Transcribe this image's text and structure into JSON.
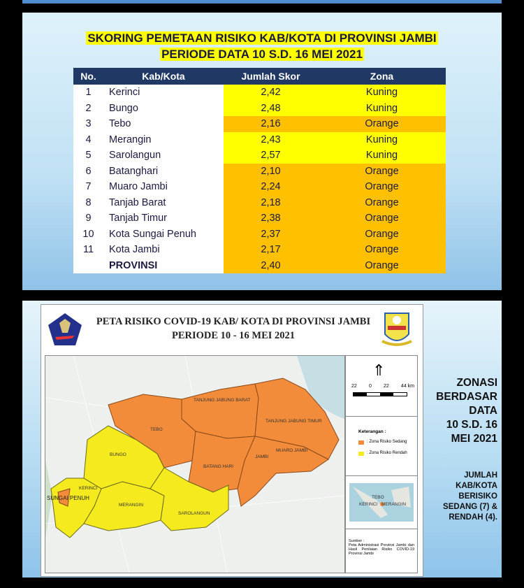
{
  "table_panel": {
    "title_line1": "SKORING PEMETAAN RISIKO KAB/KOTA DI PROVINSI JAMBI",
    "title_line2": "PERIODE  DATA 10 S.D. 16 MEI 2021",
    "headers": [
      "No.",
      "Kab/Kota",
      "Jumlah Skor",
      "Zona"
    ],
    "rows": [
      {
        "no": "1",
        "kab": "Kerinci",
        "skor": "2,42",
        "zona": "Kuning"
      },
      {
        "no": "2",
        "kab": "Bungo",
        "skor": "2,48",
        "zona": "Kuning"
      },
      {
        "no": "3",
        "kab": "Tebo",
        "skor": "2,16",
        "zona": "Orange"
      },
      {
        "no": "4",
        "kab": "Merangin",
        "skor": "2,43",
        "zona": "Kuning"
      },
      {
        "no": "5",
        "kab": "Sarolangun",
        "skor": "2,57",
        "zona": "Kuning"
      },
      {
        "no": "6",
        "kab": "Batanghari",
        "skor": "2,10",
        "zona": "Orange"
      },
      {
        "no": "7",
        "kab": "Muaro Jambi",
        "skor": "2,24",
        "zona": "Orange"
      },
      {
        "no": "8",
        "kab": "Tanjab Barat",
        "skor": "2,18",
        "zona": "Orange"
      },
      {
        "no": "9",
        "kab": "Tanjab Timur",
        "skor": "2,38",
        "zona": "Orange"
      },
      {
        "no": "10",
        "kab": "Kota Sungai Penuh",
        "skor": "2,37",
        "zona": "Orange"
      },
      {
        "no": "11",
        "kab": "Kota Jambi",
        "skor": "2,17",
        "zona": "Orange"
      },
      {
        "no": "",
        "kab": "PROVINSI",
        "skor": "2,40",
        "zona": "Orange"
      }
    ],
    "colors": {
      "Kuning": "#ffff00",
      "Orange": "#ffc000",
      "header": "#1f3864"
    }
  },
  "map_panel": {
    "title_line1": "PETA RISIKO COVID-19 KAB/ KOTA DI PROVINSI JAMBI",
    "title_line2": "PERIODE 10 - 16 MEI 2021",
    "logo_left_text": "SATUAN TUGAS PENANGANAN COVID-19",
    "region_labels": {
      "tanjabbar": "TANJUNG JABUNG BARAT",
      "tanjabtim": "TANJUNG JABUNG TIMUR",
      "tebo": "TEBO",
      "bungo": "BUNGO",
      "batanghari": "BATANG HARI",
      "jambi": "JAMBI",
      "muarojambi": "MUARO JAMBI",
      "kerinci": "KERINCI",
      "sungaipenuh": "SUNGAI PENUH",
      "merangin": "MERANGIN",
      "sarolangun": "SAROLANGUN"
    },
    "scale": [
      "22",
      "0",
      "22",
      "44 km"
    ],
    "legend_title": "Keterangan :",
    "legend": [
      {
        "label": ": Zona Risiko Sedang",
        "color": "#f28c3a"
      },
      {
        "label": ": Zona Risiko Rendah",
        "color": "#f5ea1e"
      }
    ],
    "inset_labels": [
      "TEBO",
      "KERINCI",
      "MERANGIN"
    ],
    "source": "Sumber :\nPeta Administrasi Provinsi Jambi dan Hasil Penilaian Risiko COVID-19 Provinsi Jambi"
  },
  "side_text": {
    "heading": [
      "ZONASI",
      "BERDASAR",
      "DATA",
      "10 S.D. 16",
      "MEI 2021"
    ],
    "note": [
      "JUMLAH",
      "KAB/KOTA",
      "BERISIKO",
      "SEDANG (7) &",
      "RENDAH (4)."
    ]
  }
}
